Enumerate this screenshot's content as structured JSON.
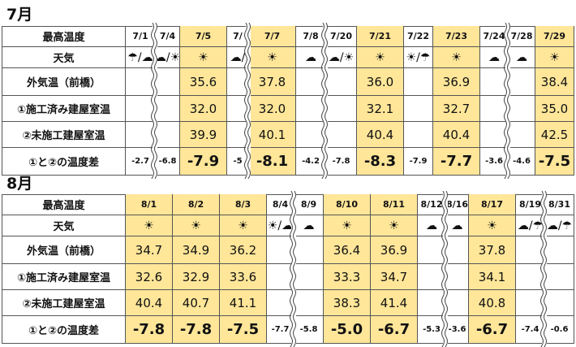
{
  "row_labels": [
    "最高温度",
    "天気",
    "外気温（前橋）",
    "①施工済み建屋室温",
    "②未施工建屋室温",
    "①と②の温度差"
  ],
  "icon_legend": {
    "sun": "sun-icon",
    "cloud": "cloud-icon",
    "rain": "umbrella-icon",
    "sun_cloud": "sun-cloud-icon",
    "cloud_rain": "cloud-umbrella-icon",
    "sun_rain": "sun-umbrella-icon"
  },
  "colors": {
    "highlight": "#ffe699",
    "border": "#555555"
  },
  "july": {
    "title": "7月",
    "columns": [
      {
        "date": "7/1",
        "weather": "☂/☁",
        "outside": "",
        "room1": "",
        "room2": "",
        "diff": "-2.7",
        "hl": false
      },
      {
        "date": "7/4",
        "weather": "☁/☀",
        "outside": "",
        "room1": "",
        "room2": "",
        "diff": "-6.8",
        "hl": false
      },
      {
        "date": "7/5",
        "weather": "☀",
        "outside": "35.6",
        "room1": "32.0",
        "room2": "39.9",
        "diff": "-7.9",
        "hl": true
      },
      {
        "date": "7/",
        "weather": "☁/",
        "outside": "",
        "room1": "",
        "room2": "",
        "diff": "-5",
        "hl": false
      },
      {
        "date": "7/7",
        "weather": "☀",
        "outside": "37.8",
        "room1": "32.0",
        "room2": "40.1",
        "diff": "-8.1",
        "hl": true
      },
      {
        "date": "7/8",
        "weather": "☁",
        "outside": "",
        "room1": "",
        "room2": "",
        "diff": "-4.2",
        "hl": false
      },
      {
        "date": "7/20",
        "weather": "☁/☀",
        "outside": "",
        "room1": "",
        "room2": "",
        "diff": "-7.8",
        "hl": false
      },
      {
        "date": "7/21",
        "weather": "☀",
        "outside": "36.0",
        "room1": "32.1",
        "room2": "40.4",
        "diff": "-8.3",
        "hl": true
      },
      {
        "date": "7/22",
        "weather": "☀/☂",
        "outside": "",
        "room1": "",
        "room2": "",
        "diff": "-7.9",
        "hl": false
      },
      {
        "date": "7/23",
        "weather": "☀",
        "outside": "36.9",
        "room1": "32.7",
        "room2": "40.4",
        "diff": "-7.7",
        "hl": true
      },
      {
        "date": "7/24",
        "weather": "☁",
        "outside": "",
        "room1": "",
        "room2": "",
        "diff": "-3.6",
        "hl": false
      },
      {
        "date": "7/28",
        "weather": "☁",
        "outside": "",
        "room1": "",
        "room2": "",
        "diff": "-4.6",
        "hl": false
      },
      {
        "date": "7/29",
        "weather": "☀",
        "outside": "38.4",
        "room1": "35.0",
        "room2": "42.5",
        "diff": "-7.5",
        "hl": true
      }
    ]
  },
  "august": {
    "title": "8月",
    "columns": [
      {
        "date": "8/1",
        "weather": "☀",
        "outside": "34.7",
        "room1": "32.6",
        "room2": "40.4",
        "diff": "-7.8",
        "hl": true
      },
      {
        "date": "8/2",
        "weather": "☀",
        "outside": "34.9",
        "room1": "32.9",
        "room2": "40.7",
        "diff": "-7.8",
        "hl": true
      },
      {
        "date": "8/3",
        "weather": "☀",
        "outside": "36.2",
        "room1": "33.6",
        "room2": "41.1",
        "diff": "-7.5",
        "hl": true
      },
      {
        "date": "8/4",
        "weather": "☀/☁",
        "outside": "",
        "room1": "",
        "room2": "",
        "diff": "-7.7",
        "hl": false
      },
      {
        "date": "8/9",
        "weather": "☁",
        "outside": "",
        "room1": "",
        "room2": "",
        "diff": "-5.8",
        "hl": false
      },
      {
        "date": "8/10",
        "weather": "☀",
        "outside": "36.4",
        "room1": "33.3",
        "room2": "38.3",
        "diff": "-5.0",
        "hl": true
      },
      {
        "date": "8/11",
        "weather": "☀",
        "outside": "36.9",
        "room1": "34.7",
        "room2": "41.4",
        "diff": "-6.7",
        "hl": true
      },
      {
        "date": "8/12",
        "weather": "☁",
        "outside": "",
        "room1": "",
        "room2": "",
        "diff": "-5.3",
        "hl": false
      },
      {
        "date": "8/16",
        "weather": "☁",
        "outside": "",
        "room1": "",
        "room2": "",
        "diff": "-3.6",
        "hl": false
      },
      {
        "date": "8/17",
        "weather": "☀",
        "outside": "37.8",
        "room1": "34.1",
        "room2": "40.8",
        "diff": "-6.7",
        "hl": true
      },
      {
        "date": "8/19",
        "weather": "☁/☂",
        "outside": "",
        "room1": "",
        "room2": "",
        "diff": "-7.4",
        "hl": false
      },
      {
        "date": "8/31",
        "weather": "☁/☂",
        "outside": "",
        "room1": "",
        "room2": "",
        "diff": "-0.6",
        "hl": false
      }
    ]
  }
}
